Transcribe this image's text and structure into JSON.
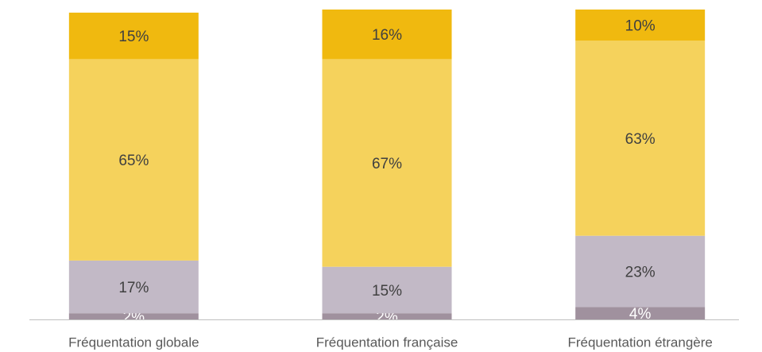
{
  "chart_data": {
    "type": "stacked_bar",
    "categories": [
      "Fréquentation globale",
      "Fréquentation française",
      "Fréquentation étrangère"
    ],
    "series": [
      {
        "color": "#a0919e",
        "label_color": "#ffffff",
        "values": [
          2,
          2,
          4
        ],
        "value_labels": [
          "2%",
          "2%",
          "4%"
        ]
      },
      {
        "color": "#c2b9c6",
        "label_color": "#404040",
        "values": [
          17,
          15,
          23
        ],
        "value_labels": [
          "17%",
          "15%",
          "23%"
        ]
      },
      {
        "color": "#f5d25c",
        "label_color": "#404040",
        "values": [
          65,
          67,
          63
        ],
        "value_labels": [
          "65%",
          "67%",
          "63%"
        ]
      },
      {
        "color": "#f0b90f",
        "label_color": "#404040",
        "values": [
          15,
          16,
          10
        ],
        "value_labels": [
          "15%",
          "16%",
          "10%"
        ]
      }
    ],
    "ylim": [
      0,
      100
    ]
  }
}
